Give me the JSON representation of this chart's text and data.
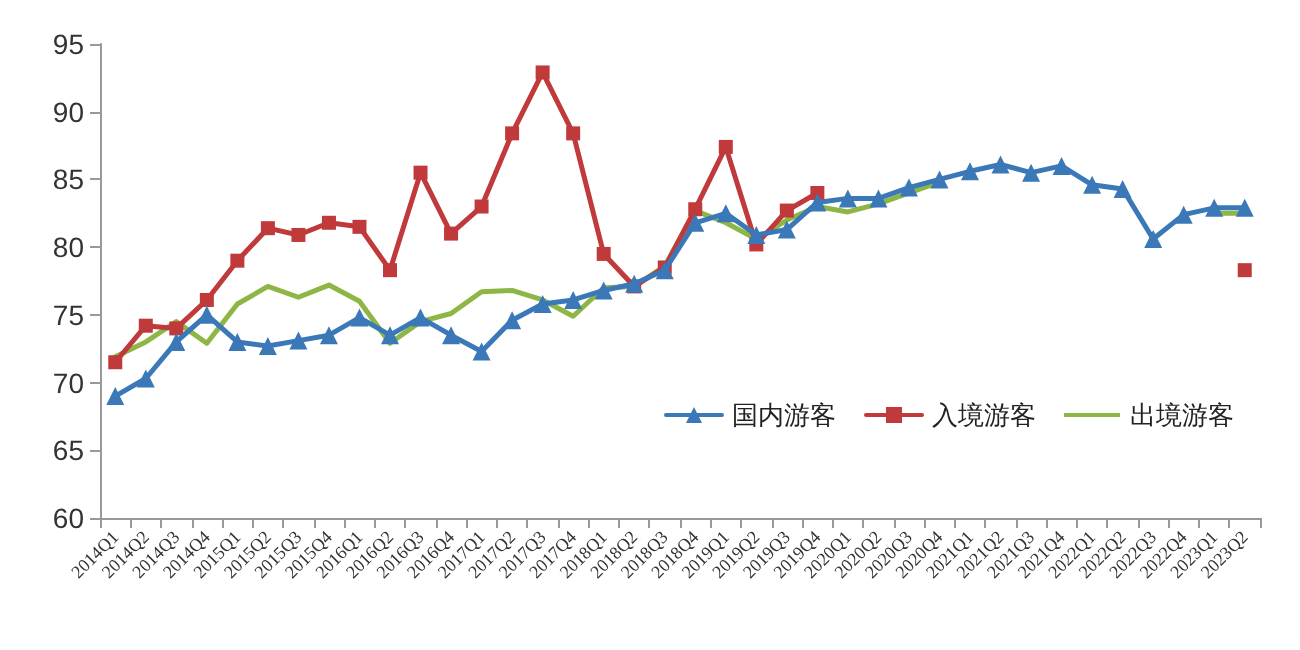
{
  "chart_data": {
    "type": "line",
    "categories": [
      "2014Q1",
      "2014Q2",
      "2014Q3",
      "2014Q4",
      "2015Q1",
      "2015Q2",
      "2015Q3",
      "2015Q4",
      "2016Q1",
      "2016Q2",
      "2016Q3",
      "2016Q4",
      "2017Q1",
      "2017Q2",
      "2017Q3",
      "2017Q4",
      "2018Q1",
      "2018Q2",
      "2018Q3",
      "2018Q4",
      "2019Q1",
      "2019Q2",
      "2019Q3",
      "2019Q4",
      "2020Q1",
      "2020Q2",
      "2020Q3",
      "2020Q4",
      "2021Q1",
      "2021Q2",
      "2021Q3",
      "2021Q4",
      "2022Q1",
      "2022Q2",
      "2022Q3",
      "2022Q4",
      "2023Q1",
      "2023Q2"
    ],
    "series": [
      {
        "name": "国内游客",
        "color": "#3a78b8",
        "marker": "triangle",
        "values": [
          69,
          70.3,
          73,
          75,
          73,
          72.7,
          73.1,
          73.5,
          74.8,
          73.5,
          74.8,
          73.5,
          72.3,
          74.6,
          75.8,
          76.1,
          76.8,
          77.3,
          78.3,
          81.8,
          82.5,
          80.9,
          81.3,
          83.3,
          83.6,
          83.6,
          84.4,
          85,
          85.6,
          86.1,
          85.5,
          86,
          84.6,
          84.3,
          80.6,
          82.4,
          82.9,
          82.9
        ]
      },
      {
        "name": "入境游客",
        "color": "#c0393b",
        "marker": "square",
        "values": [
          71.5,
          74.2,
          74,
          76.1,
          79,
          81.4,
          80.9,
          81.8,
          81.5,
          78.3,
          85.5,
          81,
          83,
          88.4,
          92.9,
          88.4,
          79.5,
          77.1,
          78.5,
          82.8,
          87.4,
          80.2,
          82.7,
          84,
          null,
          null,
          null,
          null,
          null,
          null,
          null,
          null,
          null,
          null,
          null,
          null,
          null,
          78.3
        ]
      },
      {
        "name": "出境游客",
        "color": "#8db645",
        "marker": "none",
        "values": [
          71.9,
          73,
          74.5,
          72.9,
          75.8,
          77.1,
          76.3,
          77.2,
          76,
          72.9,
          74.5,
          75.1,
          76.7,
          76.8,
          76.1,
          74.9,
          77,
          77.1,
          78.6,
          82.7,
          81.8,
          80.6,
          82,
          83,
          82.6,
          83.2,
          84,
          84.8,
          null,
          null,
          null,
          null,
          null,
          null,
          null,
          null,
          82.5,
          82.5
        ]
      }
    ],
    "ylim": [
      60,
      95
    ],
    "yticks": [
      60,
      65,
      70,
      75,
      80,
      85,
      90,
      95
    ],
    "grid": false,
    "legend": "bottom right",
    "line_style": "solid"
  }
}
